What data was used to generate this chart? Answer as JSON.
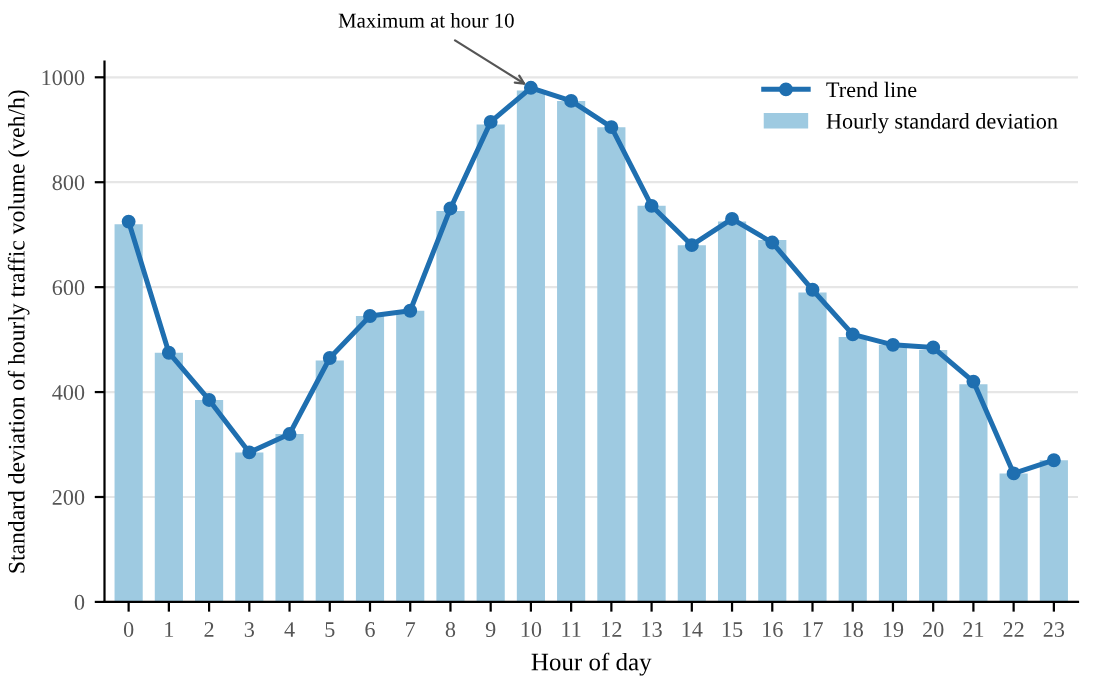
{
  "chart_data": {
    "type": "bar",
    "xlabel": "Hour of day",
    "ylabel": "Standard deviation of hourly traffic volume (veh/h)",
    "categories": [
      "0",
      "1",
      "2",
      "3",
      "4",
      "5",
      "6",
      "7",
      "8",
      "9",
      "10",
      "11",
      "12",
      "13",
      "14",
      "15",
      "16",
      "17",
      "18",
      "19",
      "20",
      "21",
      "22",
      "23"
    ],
    "series": [
      {
        "name": "Hourly standard deviation",
        "color": "#9ecae1",
        "values": [
          720,
          475,
          385,
          285,
          320,
          460,
          545,
          555,
          745,
          910,
          975,
          955,
          905,
          755,
          680,
          725,
          690,
          590,
          505,
          490,
          480,
          415,
          245,
          270
        ]
      },
      {
        "name": "Trend line",
        "type": "line",
        "color": "#1f6fb0",
        "marker": "circle",
        "line_style": "solid",
        "values": [
          725,
          475,
          385,
          285,
          320,
          465,
          545,
          555,
          750,
          915,
          980,
          955,
          905,
          755,
          680,
          730,
          685,
          595,
          510,
          490,
          485,
          420,
          245,
          270
        ]
      }
    ],
    "ylim": [
      0,
      1030
    ],
    "yticks": [
      0,
      200,
      400,
      600,
      800,
      1000
    ],
    "grid": "y",
    "legend": "top right",
    "annotations": [
      {
        "text": "Maximum at hour 10",
        "x": "10",
        "y": 980
      }
    ]
  }
}
